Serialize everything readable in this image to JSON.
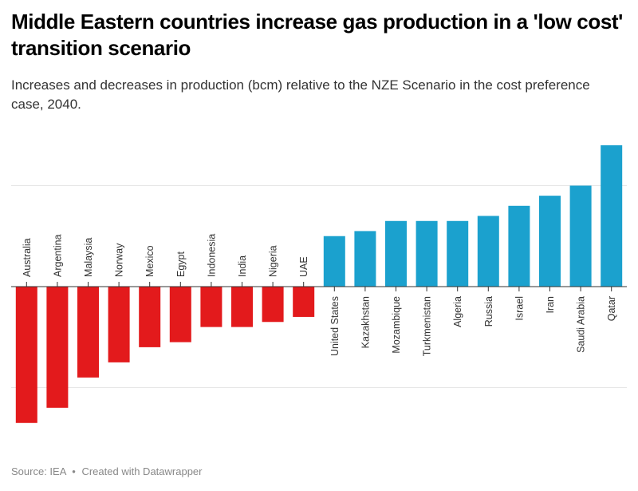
{
  "header": {
    "title": "Middle Eastern countries increase gas production in a 'low cost' transition scenario",
    "subtitle": "Increases and decreases in production (bcm) relative to the NZE Scenario in the cost preference case, 2040."
  },
  "footer": {
    "source": "Source: IEA",
    "separator": "•",
    "credit": "Created with Datawrapper"
  },
  "colors": {
    "negative": "#e31a1c",
    "positive": "#1ba1ce",
    "gridline": "#e6e6e6",
    "axis": "#333333"
  },
  "chart_data": {
    "type": "bar",
    "title": "Middle Eastern countries increase gas production in a 'low cost' transition scenario",
    "subtitle": "Increases and decreases in production (bcm) relative to the NZE Scenario in the cost preference case, 2040.",
    "xlabel": "",
    "ylabel": "",
    "value_units": "relative to unlabeled gridline spacing (gridlines at -1, 0, +1)",
    "gridlines": [
      -1,
      1
    ],
    "grid": true,
    "ylim": [
      -1.45,
      1.5
    ],
    "categories": [
      "Australia",
      "Argentina",
      "Malaysia",
      "Norway",
      "Mexico",
      "Egypt",
      "Indonesia",
      "India",
      "Nigeria",
      "UAE",
      "United States",
      "Kazakhstan",
      "Mozambique",
      "Turkmenistan",
      "Algeria",
      "Russia",
      "Israel",
      "Iran",
      "Saudi Arabia",
      "Qatar"
    ],
    "values": [
      -1.35,
      -1.2,
      -0.9,
      -0.75,
      -0.6,
      -0.55,
      -0.4,
      -0.4,
      -0.35,
      -0.3,
      0.5,
      0.55,
      0.65,
      0.65,
      0.65,
      0.7,
      0.8,
      0.9,
      1.0,
      1.4
    ],
    "legend": "none"
  }
}
